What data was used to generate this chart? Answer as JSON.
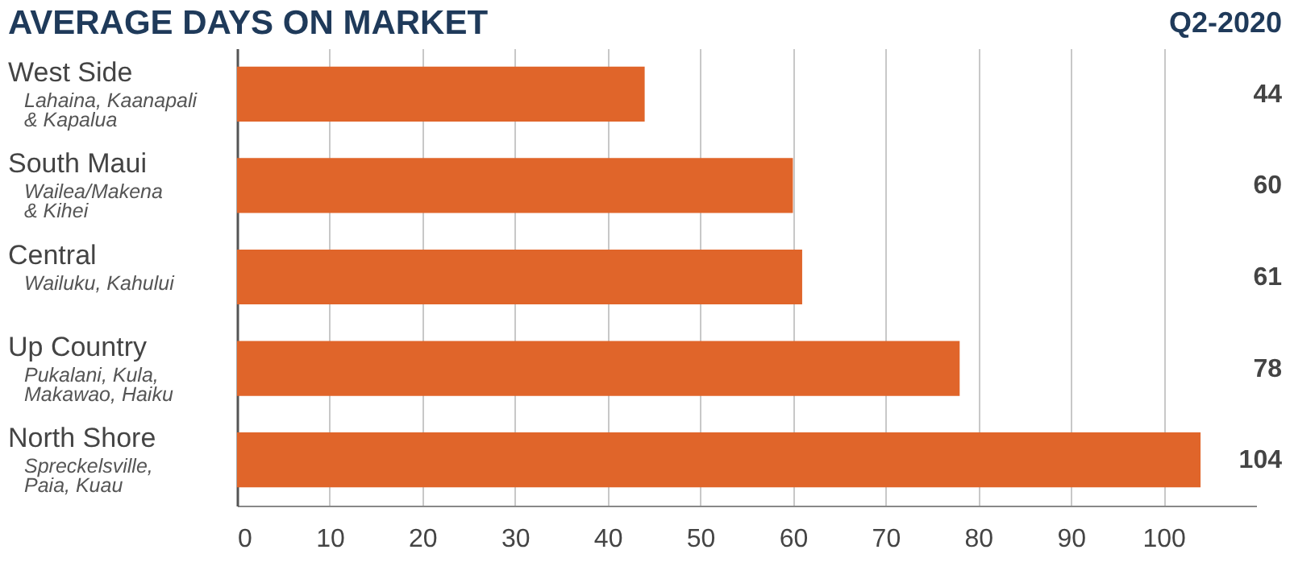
{
  "chart_data": {
    "type": "bar",
    "orientation": "horizontal",
    "title": "AVERAGE DAYS ON MARKET",
    "subtitle": "Q2-2020",
    "categories": [
      "West Side\nLahaina, Kaanapali\n& Kapalua",
      "South Maui\nWailea/Makena\n& Kihei",
      "Central\nWailuku, Kahului",
      "Up Country\nPukalani, Kula,\nMakawao, Haiku",
      "North Shore\nSpreckelsville,\nPaia, Kuau"
    ],
    "values": [
      44,
      60,
      61,
      78,
      104
    ],
    "color": "#e0652a",
    "data_labels": true,
    "xlim": [
      0,
      110
    ],
    "xticks": [
      0,
      10,
      20,
      30,
      40,
      50,
      60,
      70,
      80,
      90,
      100
    ],
    "grid": "x"
  }
}
